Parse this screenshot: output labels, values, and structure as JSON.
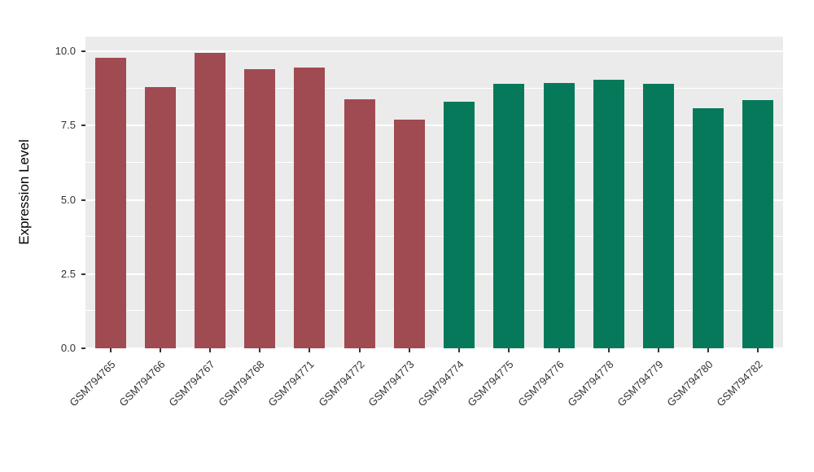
{
  "chart_data": {
    "type": "bar",
    "title": "",
    "xlabel": "",
    "ylabel": "Expression Level",
    "categories": [
      "GSM794765",
      "GSM794766",
      "GSM794767",
      "GSM794768",
      "GSM794771",
      "GSM794772",
      "GSM794773",
      "GSM794774",
      "GSM794775",
      "GSM794776",
      "GSM794778",
      "GSM794779",
      "GSM794780",
      "GSM794782"
    ],
    "values": [
      9.8,
      8.8,
      9.95,
      9.4,
      9.45,
      8.4,
      7.7,
      8.3,
      8.9,
      8.95,
      9.05,
      8.9,
      8.1,
      8.35
    ],
    "groups": [
      "group1",
      "group1",
      "group1",
      "group1",
      "group1",
      "group1",
      "group1",
      "group2",
      "group2",
      "group2",
      "group2",
      "group2",
      "group2",
      "group2"
    ],
    "bar_colors": {
      "group1": "#A04A52",
      "group2": "#06795A"
    },
    "ylim": [
      0,
      10.5
    ],
    "yticks": {
      "values": [
        0,
        2.5,
        5,
        7.5,
        10
      ],
      "labels": [
        "0.0",
        "2.5",
        "5.0",
        "7.5",
        "10.0"
      ]
    },
    "minor_ticks": [
      1.25,
      3.75,
      6.25,
      8.75
    ],
    "panel_bg": "#EBEBEB",
    "grid_color": "#FFFFFF",
    "grid": "on",
    "legend_position": "none"
  }
}
